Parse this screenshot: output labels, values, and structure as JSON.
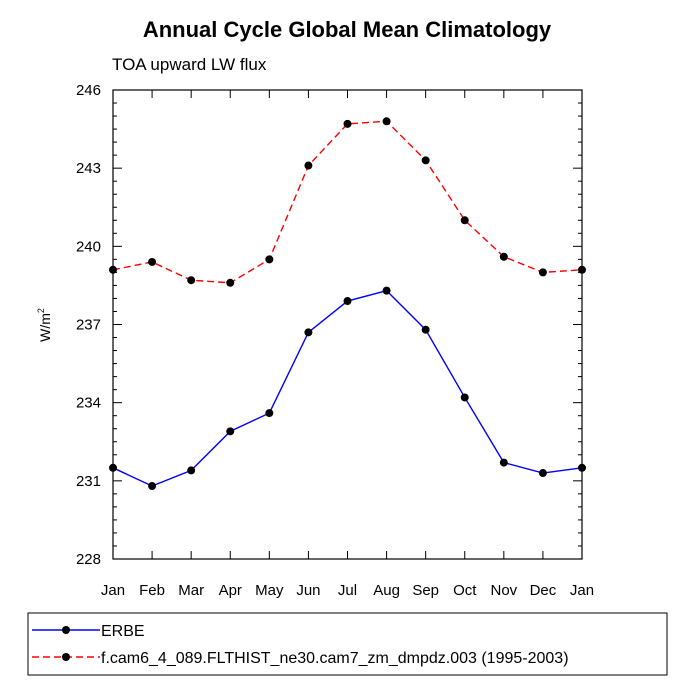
{
  "chart_data": {
    "type": "line",
    "title": "Annual Cycle Global Mean Climatology",
    "subtitle": "TOA upward LW flux",
    "ylabel": "W/m",
    "ylabel_superscript": "2",
    "xlabel": "",
    "categories": [
      "Jan",
      "Feb",
      "Mar",
      "Apr",
      "May",
      "Jun",
      "Jul",
      "Aug",
      "Sep",
      "Oct",
      "Nov",
      "Dec",
      "Jan"
    ],
    "ylim": [
      228,
      246
    ],
    "yticks": [
      228,
      231,
      234,
      237,
      240,
      243,
      246
    ],
    "grid": false,
    "legend_position": "bottom",
    "series": [
      {
        "name": "ERBE",
        "color": "#0000ff",
        "dash": "solid",
        "values": [
          231.5,
          230.8,
          231.4,
          232.9,
          233.6,
          236.7,
          237.9,
          238.3,
          236.8,
          234.2,
          231.7,
          231.3,
          231.5
        ]
      },
      {
        "name": "f.cam6_4_089.FLTHIST_ne30.cam7_zm_dmpdz.003 (1995-2003)",
        "color": "#ff0000",
        "dash": "dashed",
        "values": [
          239.1,
          239.4,
          238.7,
          238.6,
          239.5,
          243.1,
          244.7,
          244.8,
          243.3,
          241.0,
          239.6,
          239.0,
          239.1
        ]
      }
    ]
  }
}
